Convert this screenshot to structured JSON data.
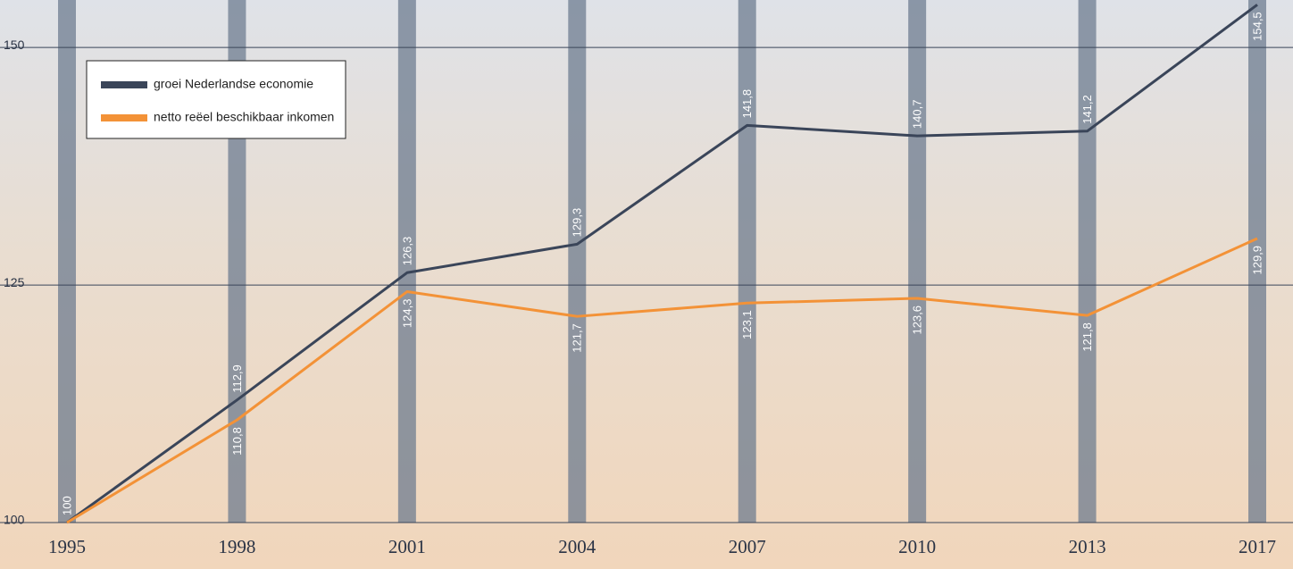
{
  "chart_data": {
    "type": "line",
    "categories": [
      "1995",
      "1998",
      "2001",
      "2004",
      "2007",
      "2010",
      "2013",
      "2017"
    ],
    "series": [
      {
        "name": "groei Nederlandse economie",
        "color": "#3a4559",
        "values": [
          100,
          112.9,
          126.3,
          129.3,
          141.8,
          140.7,
          141.2,
          154.5
        ],
        "value_labels": [
          "100",
          "112,9",
          "126,3",
          "129,3",
          "141,8",
          "140,7",
          "141,2",
          "154,5"
        ]
      },
      {
        "name": "netto reëel beschikbaar inkomen",
        "color": "#f39237",
        "values": [
          100,
          110.8,
          124.3,
          121.7,
          123.1,
          123.6,
          121.8,
          129.9
        ],
        "value_labels": [
          null,
          "110,8",
          "124,3",
          "121,7",
          "123,1",
          "123,6",
          "121,8",
          "129,9"
        ]
      }
    ],
    "ylim": [
      100,
      155
    ],
    "yticks": [
      100,
      125,
      150
    ],
    "grid": true,
    "legend": "top-left"
  }
}
